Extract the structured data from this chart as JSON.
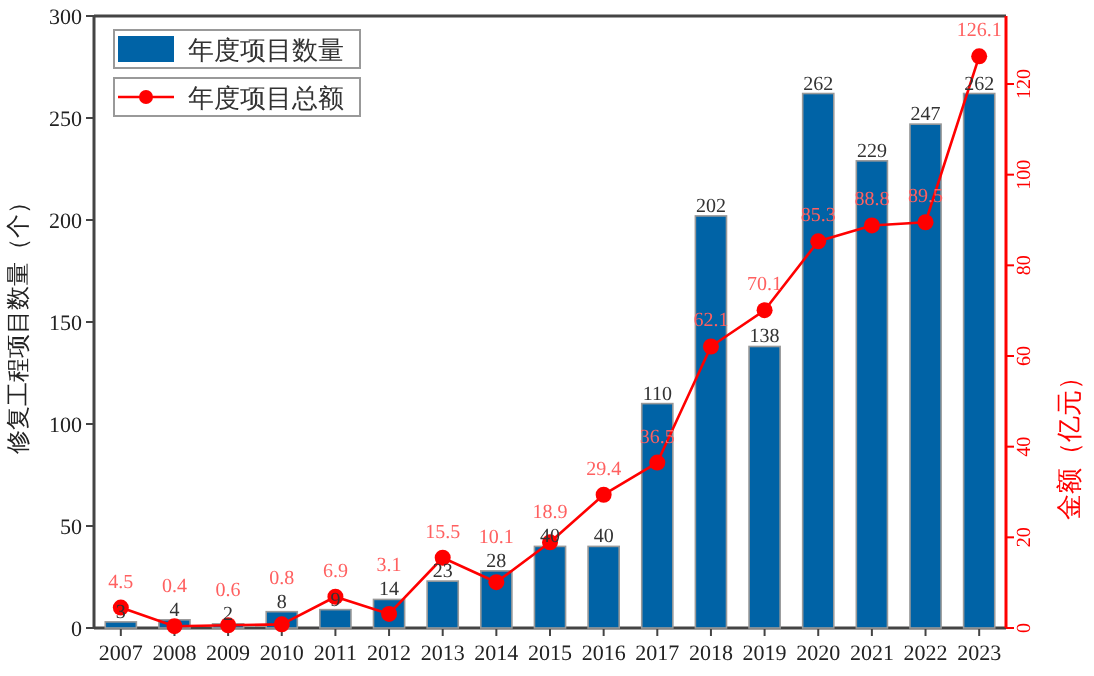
{
  "chart_data": {
    "type": "bar",
    "ylabel": "修复工程项目数量（个）",
    "y2label": "金额（亿元）",
    "categories": [
      "2007",
      "2008",
      "2009",
      "2010",
      "2011",
      "2012",
      "2013",
      "2014",
      "2015",
      "2016",
      "2017",
      "2018",
      "2019",
      "2020",
      "2021",
      "2022",
      "2023"
    ],
    "series": [
      {
        "name": "年度项目数量",
        "color": "#0063a6",
        "values": [
          3,
          4,
          2,
          8,
          9,
          14,
          23,
          28,
          40,
          40,
          110,
          202,
          138,
          262,
          229,
          247,
          262
        ]
      },
      {
        "name": "年度项目总额",
        "type": "line",
        "axis": "y2",
        "color": "#ff0000",
        "values": [
          4.5,
          0.4,
          0.6,
          0.8,
          6.9,
          3.1,
          15.5,
          10.1,
          18.9,
          29.4,
          36.5,
          62.1,
          70.1,
          85.3,
          88.8,
          89.5,
          126.1
        ]
      }
    ],
    "ylim": [
      0,
      300
    ],
    "yticks": [
      0,
      50,
      100,
      150,
      200,
      250,
      300
    ],
    "y2lim": [
      0,
      135
    ],
    "y2ticks": [
      0,
      20,
      40,
      60,
      80,
      100,
      120
    ],
    "data_labels": true,
    "legend": "top left",
    "marker": "circle",
    "grid": false
  }
}
